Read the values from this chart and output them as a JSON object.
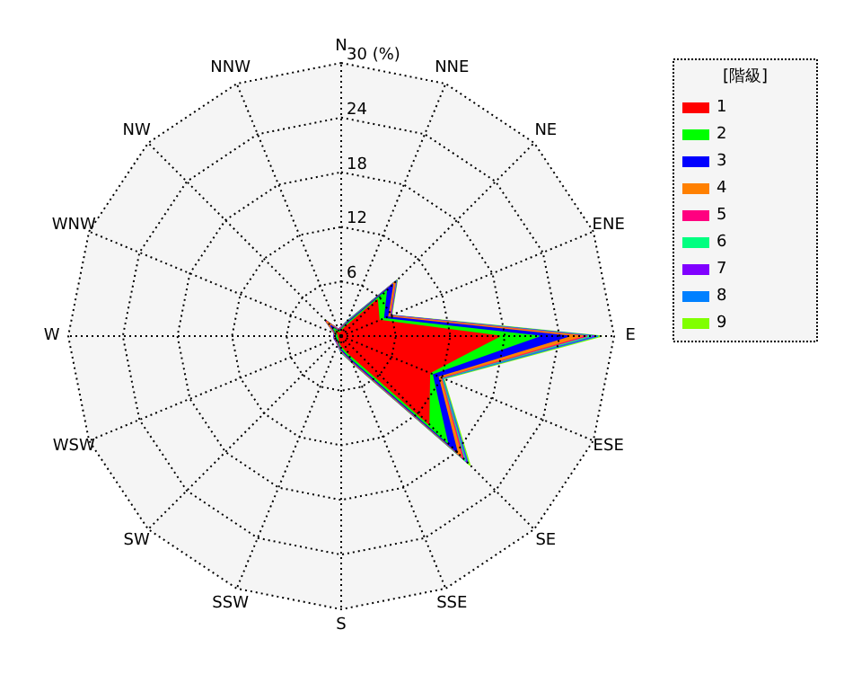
{
  "chart_data": {
    "type": "radar",
    "legend_title": "[階級]",
    "categories": [
      "N",
      "NNE",
      "NE",
      "ENE",
      "E",
      "ESE",
      "SE",
      "SSE",
      "S",
      "SSW",
      "SW",
      "WSW",
      "W",
      "WNW",
      "NW",
      "NNW"
    ],
    "ylim": [
      0,
      30
    ],
    "yticks": [
      6,
      12,
      18,
      24,
      {
        "value": 30,
        "label": "30 (%)"
      }
    ],
    "grid": true,
    "legend": "top right",
    "series": [
      {
        "name": "1",
        "color": "#ff0000",
        "values": [
          0.5,
          1,
          5.6,
          4.5,
          17.4,
          10.5,
          13.6,
          2,
          1,
          0.5,
          0.3,
          0.3,
          0.3,
          0.3,
          0.8,
          0.3
        ]
      },
      {
        "name": "2",
        "color": "#00ff00",
        "values": [
          0.7,
          1.3,
          7,
          5,
          21.7,
          10.8,
          16.5,
          2.5,
          1.3,
          0.7,
          0.5,
          0.5,
          0.5,
          0.5,
          1.2,
          0.5
        ]
      },
      {
        "name": "3",
        "color": "#0000ff",
        "values": [
          0.8,
          1.5,
          8,
          5.5,
          25,
          11.5,
          18,
          2.8,
          1.5,
          0.8,
          0.6,
          0.6,
          0.6,
          0.6,
          1.6,
          0.6
        ]
      },
      {
        "name": "4",
        "color": "#ff8000",
        "values": [
          0.9,
          1.6,
          8.3,
          5.7,
          26.5,
          11.8,
          18.7,
          2.9,
          1.6,
          0.9,
          0.7,
          0.7,
          0.7,
          0.7,
          2.2,
          0.7
        ]
      },
      {
        "name": "5",
        "color": "#ff0080",
        "values": [
          0.9,
          1.6,
          8.4,
          5.8,
          27,
          11.9,
          19,
          3,
          1.6,
          0.9,
          0.7,
          0.7,
          0.7,
          0.7,
          2.3,
          0.7
        ]
      },
      {
        "name": "6",
        "color": "#00ff80",
        "values": [
          0.9,
          1.7,
          8.5,
          5.8,
          27.5,
          12,
          19.3,
          3,
          1.7,
          0.9,
          0.7,
          0.7,
          0.7,
          0.7,
          2.3,
          0.7
        ]
      },
      {
        "name": "7",
        "color": "#8000ff",
        "values": [
          1,
          1.7,
          8.6,
          5.9,
          27.8,
          12,
          19.5,
          3.1,
          1.7,
          1,
          0.8,
          0.8,
          0.8,
          0.8,
          2.4,
          0.8
        ]
      },
      {
        "name": "8",
        "color": "#0080ff",
        "values": [
          1,
          1.8,
          8.6,
          5.9,
          28.2,
          12.1,
          19.7,
          3.1,
          1.8,
          1,
          0.8,
          0.8,
          0.8,
          0.8,
          2.4,
          0.8
        ]
      },
      {
        "name": "9",
        "color": "#80ff00",
        "values": [
          1,
          1.8,
          8.7,
          6,
          28.6,
          12.2,
          20,
          3.2,
          1.8,
          1,
          0.8,
          0.8,
          0.8,
          0.8,
          2.5,
          0.8
        ]
      }
    ]
  }
}
